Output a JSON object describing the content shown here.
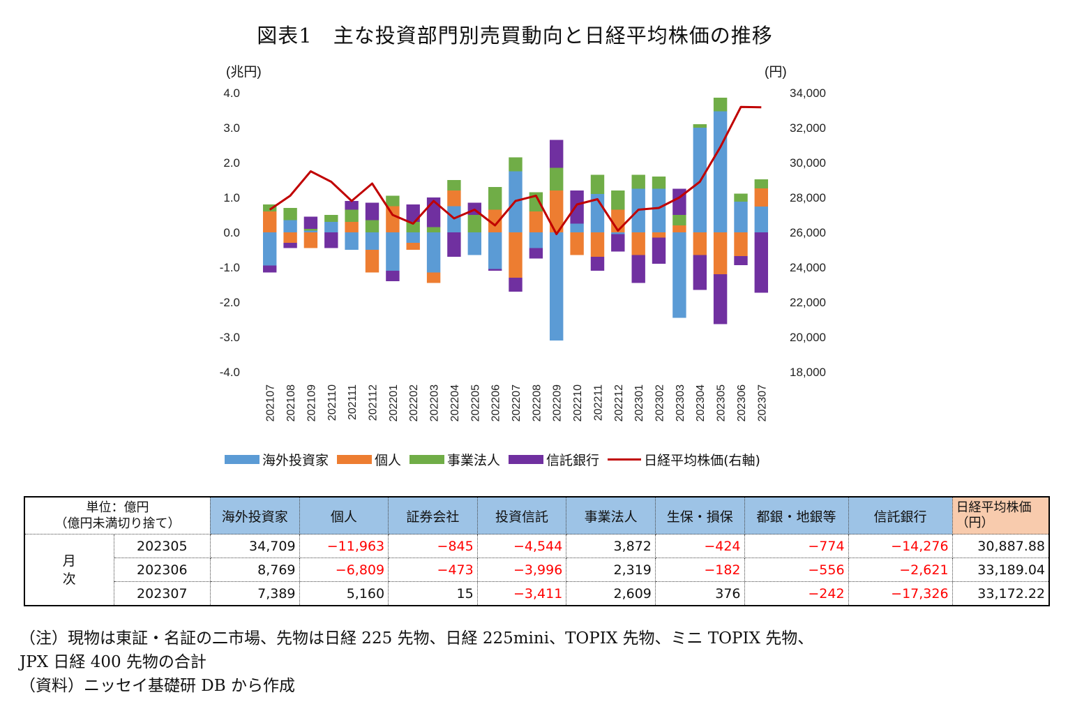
{
  "title": "図表1　主な投資部門別売買動向と日経平均株価の推移",
  "chart_data": {
    "type": "bar",
    "stacked": true,
    "y_left_label": "(兆円)",
    "y_right_label": "(円)",
    "y_left_ticks": [
      "4.0",
      "3.0",
      "2.0",
      "1.0",
      "0.0",
      "-1.0",
      "-2.0",
      "-3.0",
      "-4.0"
    ],
    "y_right_ticks": [
      "34,000",
      "32,000",
      "30,000",
      "28,000",
      "26,000",
      "24,000",
      "22,000",
      "20,000",
      "18,000"
    ],
    "ylim_left": [
      -4,
      4
    ],
    "ylim_right": [
      18000,
      34000
    ],
    "categories": [
      "202107",
      "202108",
      "202109",
      "202110",
      "202111",
      "202112",
      "202201",
      "202202",
      "202203",
      "202204",
      "202205",
      "202206",
      "202207",
      "202208",
      "202209",
      "202210",
      "202211",
      "202212",
      "202301",
      "202302",
      "202303",
      "202304",
      "202305",
      "202306",
      "202307"
    ],
    "series": [
      {
        "name": "海外投資家",
        "color": "#5b9bd5",
        "axis": "left",
        "values": [
          -0.95,
          0.35,
          0.05,
          0.3,
          -0.5,
          -0.5,
          -1.1,
          -0.3,
          -1.15,
          0.75,
          -0.65,
          -1.05,
          1.75,
          -0.45,
          -3.1,
          0.25,
          1.1,
          -0.05,
          1.25,
          1.25,
          -2.45,
          3.0,
          3.47,
          0.88,
          0.74
        ]
      },
      {
        "name": "個人",
        "color": "#ed7d31",
        "axis": "left",
        "values": [
          0.6,
          -0.3,
          -0.45,
          0.0,
          0.3,
          -0.65,
          0.75,
          -0.2,
          -0.3,
          0.45,
          0.0,
          0.65,
          -1.3,
          0.6,
          1.2,
          -0.65,
          -0.7,
          0.65,
          -0.65,
          -0.15,
          0.2,
          -0.65,
          -1.2,
          -0.68,
          0.52
        ]
      },
      {
        "name": "事業法人",
        "color": "#70ad47",
        "axis": "left",
        "values": [
          0.2,
          0.35,
          0.05,
          0.2,
          0.35,
          0.35,
          0.3,
          0.3,
          0.15,
          0.3,
          0.5,
          0.65,
          0.4,
          0.55,
          0.65,
          0.0,
          0.55,
          0.55,
          0.4,
          0.35,
          0.3,
          0.1,
          0.39,
          0.23,
          0.26
        ]
      },
      {
        "name": "信託銀行",
        "color": "#7030a0",
        "axis": "left",
        "values": [
          -0.2,
          -0.15,
          0.35,
          -0.45,
          0.25,
          0.5,
          -0.3,
          0.5,
          0.85,
          -0.7,
          0.35,
          -0.05,
          -0.4,
          -0.3,
          0.8,
          0.95,
          -0.4,
          -0.5,
          -0.8,
          -0.75,
          0.75,
          -1.0,
          -1.43,
          -0.26,
          -1.73
        ]
      },
      {
        "name": "日経平均株価(右軸)",
        "color": "#c00000",
        "axis": "right",
        "type": "line",
        "values": [
          27300,
          28100,
          29500,
          28900,
          27800,
          28800,
          27000,
          26500,
          27800,
          26800,
          27300,
          26400,
          27800,
          28100,
          25900,
          27600,
          27900,
          26100,
          27300,
          27400,
          28000,
          28900,
          30888,
          33189,
          33172
        ]
      }
    ]
  },
  "legend": {
    "items": [
      {
        "label": "海外投資家",
        "color": "#5b9bd5",
        "kind": "box"
      },
      {
        "label": "個人",
        "color": "#ed7d31",
        "kind": "box"
      },
      {
        "label": "事業法人",
        "color": "#70ad47",
        "kind": "box"
      },
      {
        "label": "信託銀行",
        "color": "#7030a0",
        "kind": "box"
      },
      {
        "label": "日経平均株価(右軸)",
        "color": "#c00000",
        "kind": "line"
      }
    ]
  },
  "table": {
    "unit_label_1": "単位：億円",
    "unit_label_2": "（億円未満切り捨て）",
    "side_label_1": "月",
    "side_label_2": "次",
    "headers": [
      "海外投資家",
      "個人",
      "証券会社",
      "投資信託",
      "事業法人",
      "生保・損保",
      "都銀・地銀等",
      "信託銀行"
    ],
    "nikkei_header_1": "日経平均株価",
    "nikkei_header_2": "（円）",
    "rows": [
      {
        "month": "202305",
        "cells": [
          "34,709",
          "−11,963",
          "−845",
          "−4,544",
          "3,872",
          "−424",
          "−774",
          "−14,276"
        ],
        "nikkei": "30,887.88"
      },
      {
        "month": "202306",
        "cells": [
          "8,769",
          "−6,809",
          "−473",
          "−3,996",
          "2,319",
          "−182",
          "−556",
          "−2,621"
        ],
        "nikkei": "33,189.04"
      },
      {
        "month": "202307",
        "cells": [
          "7,389",
          "5,160",
          "15",
          "−3,411",
          "2,609",
          "376",
          "−242",
          "−17,326"
        ],
        "nikkei": "33,172.22"
      }
    ]
  },
  "notes": {
    "line1": "（注）現物は東証・名証の二市場、先物は日経 225 先物、日経 225mini、TOPIX 先物、ミニ TOPIX 先物、",
    "line2": "JPX 日経 400 先物の合計",
    "line3": "（資料）ニッセイ基礎研 DB から作成"
  }
}
